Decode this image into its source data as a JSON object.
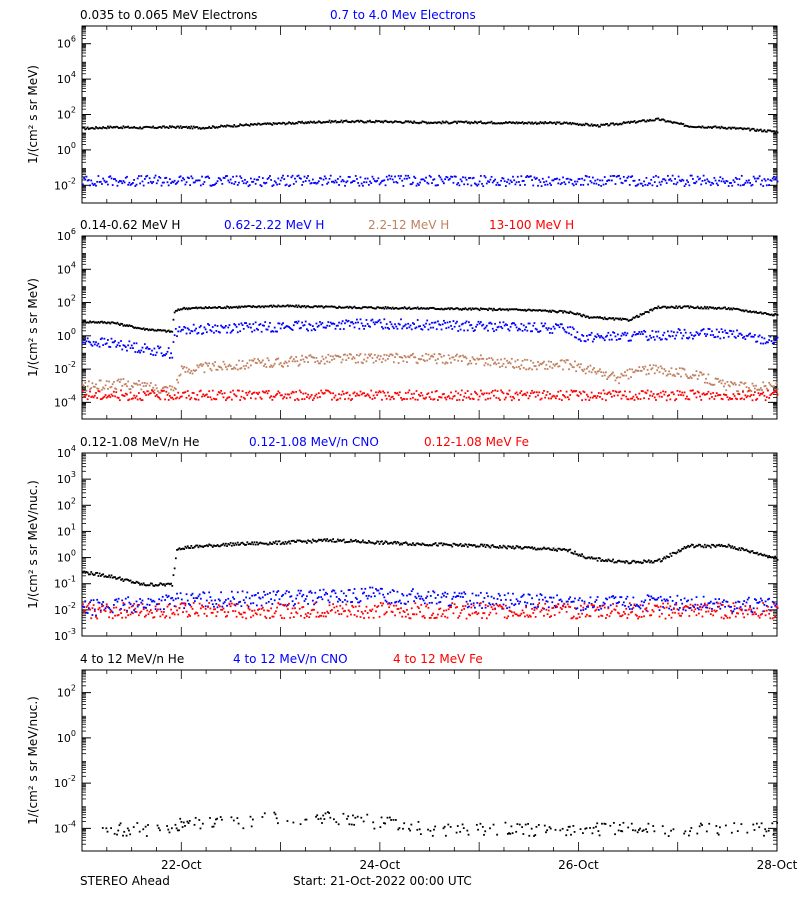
{
  "chart_data": [
    {
      "type": "scatter",
      "ylabel": "1/(cm² s sr MeV)",
      "yscale": "log",
      "ylim_exp": [
        -3,
        7
      ],
      "ytick_exps": [
        -2,
        0,
        2,
        4,
        6
      ],
      "xlim": [
        "2022-10-21T00:00",
        "2022-10-28T00:00"
      ],
      "legend": [
        {
          "label": "0.035 to 0.065 MeV Electrons",
          "color": "#000000"
        },
        {
          "label": "0.7 to 4.0 Mev Electrons",
          "color": "#0000ff"
        }
      ],
      "series": [
        {
          "color": "#000000",
          "x_days": [
            0,
            0.3,
            0.6,
            0.9,
            1.2,
            1.6,
            2.0,
            2.5,
            3.0,
            3.5,
            4.0,
            4.5,
            4.9,
            5.2,
            5.6,
            5.8,
            6.1,
            6.5,
            7.0
          ],
          "y": [
            18,
            22,
            20,
            22,
            20,
            28,
            35,
            45,
            45,
            40,
            40,
            38,
            36,
            26,
            45,
            60,
            25,
            20,
            12
          ]
        },
        {
          "color": "#0000ff",
          "x_days": [
            0,
            1,
            2,
            3,
            4,
            5,
            6,
            7
          ],
          "y": [
            0.02,
            0.02,
            0.02,
            0.02,
            0.02,
            0.02,
            0.02,
            0.02
          ]
        }
      ]
    },
    {
      "type": "scatter",
      "ylabel": "1/(cm² s sr MeV)",
      "yscale": "log",
      "ylim_exp": [
        -5,
        6
      ],
      "ytick_exps": [
        -4,
        -2,
        0,
        2,
        4,
        6
      ],
      "xlim": [
        "2022-10-21T00:00",
        "2022-10-28T00:00"
      ],
      "legend": [
        {
          "label": "0.14-0.62 MeV H",
          "color": "#000000"
        },
        {
          "label": "0.62-2.22 MeV H",
          "color": "#0000ff"
        },
        {
          "label": "2.2-12 MeV H",
          "color": "#c08060"
        },
        {
          "label": "13-100 MeV H",
          "color": "#ff0000"
        }
      ],
      "series": [
        {
          "color": "#000000",
          "x_days": [
            0,
            0.3,
            0.6,
            0.9,
            0.92,
            1.0,
            1.5,
            2.0,
            2.5,
            3.0,
            3.5,
            4.0,
            4.5,
            4.9,
            5.1,
            5.5,
            5.8,
            6.1,
            6.5,
            7.0
          ],
          "y": [
            8,
            7,
            3,
            2,
            30,
            50,
            60,
            70,
            60,
            55,
            50,
            45,
            40,
            30,
            15,
            10,
            60,
            60,
            50,
            20
          ]
        },
        {
          "color": "#0000ff",
          "x_days": [
            0,
            0.3,
            0.6,
            0.9,
            0.92,
            1.0,
            1.5,
            2.0,
            2.5,
            3.0,
            3.5,
            4.0,
            4.5,
            4.9,
            5.0,
            5.5,
            6.0,
            6.5,
            7.0
          ],
          "y": [
            0.5,
            0.4,
            0.2,
            0.1,
            1.5,
            2.5,
            3.5,
            4,
            5,
            6,
            5,
            4,
            3.5,
            3,
            1,
            1,
            1.5,
            1.5,
            0.5
          ]
        },
        {
          "color": "#c08060",
          "x_days": [
            0,
            0.4,
            0.8,
            0.92,
            1.0,
            1.5,
            2.0,
            2.5,
            3.0,
            3.5,
            4.0,
            4.5,
            4.9,
            5.1,
            5.4,
            5.6,
            5.8,
            6.0,
            6.3,
            6.5,
            7.0
          ],
          "y": [
            0.001,
            0.0015,
            0.0008,
            0.0008,
            0.01,
            0.02,
            0.03,
            0.05,
            0.05,
            0.05,
            0.04,
            0.02,
            0.02,
            0.01,
            0.003,
            0.01,
            0.01,
            0.008,
            0.003,
            0.001,
            0.001
          ]
        },
        {
          "color": "#ff0000",
          "x_days": [
            0,
            1,
            2,
            3,
            4,
            5,
            6,
            7
          ],
          "y": [
            0.0003,
            0.0003,
            0.0003,
            0.0003,
            0.0003,
            0.0003,
            0.0003,
            0.0003
          ]
        }
      ]
    },
    {
      "type": "scatter",
      "ylabel": "1/(cm² s sr MeV/nuc.)",
      "yscale": "log",
      "ylim_exp": [
        -3,
        4
      ],
      "ytick_exps": [
        -3,
        -2,
        -1,
        0,
        1,
        2,
        3,
        4
      ],
      "xlim": [
        "2022-10-21T00:00",
        "2022-10-28T00:00"
      ],
      "legend": [
        {
          "label": "0.12-1.08 MeV/n He",
          "color": "#000000"
        },
        {
          "label": "0.12-1.08 MeV/n CNO",
          "color": "#0000ff"
        },
        {
          "label": "0.12-1.08 MeV Fe",
          "color": "#ff0000"
        }
      ],
      "series": [
        {
          "color": "#000000",
          "x_days": [
            0,
            0.3,
            0.6,
            0.9,
            0.95,
            1.5,
            2.0,
            2.5,
            3.0,
            3.5,
            4.0,
            4.5,
            4.9,
            5.1,
            5.5,
            5.8,
            6.1,
            6.5,
            7.0
          ],
          "y": [
            0.3,
            0.2,
            0.1,
            0.1,
            2.5,
            3.5,
            4,
            5,
            4,
            3.5,
            3,
            2.5,
            2,
            1,
            0.7,
            0.8,
            3,
            3,
            1
          ]
        },
        {
          "color": "#0000ff",
          "x_days": [
            0,
            1,
            2,
            3,
            4,
            5,
            6,
            7
          ],
          "y": [
            0.012,
            0.025,
            0.03,
            0.04,
            0.025,
            0.02,
            0.02,
            0.015
          ]
        },
        {
          "color": "#ff0000",
          "x_days": [
            0,
            1,
            2,
            3,
            4,
            5,
            6,
            7
          ],
          "y": [
            0.01,
            0.01,
            0.01,
            0.01,
            0.01,
            0.01,
            0.01,
            0.01
          ]
        }
      ]
    },
    {
      "type": "scatter",
      "ylabel": "1/(cm² s sr MeV/nuc.)",
      "yscale": "log",
      "ylim_exp": [
        -5,
        3
      ],
      "ytick_exps": [
        -4,
        -2,
        0,
        2
      ],
      "xlim": [
        "2022-10-21T00:00",
        "2022-10-28T00:00"
      ],
      "legend": [
        {
          "label": "4 to 12 MeV/n He",
          "color": "#000000"
        },
        {
          "label": "4 to 12 MeV/n CNO",
          "color": "#0000ff"
        },
        {
          "label": "4 to 12 MeV Fe",
          "color": "#ff0000"
        }
      ],
      "series": [
        {
          "color": "#000000",
          "x_days": [
            0.2,
            0.5,
            0.9,
            1.0,
            1.5,
            2.0,
            2.5,
            3.0,
            3.5,
            4.0,
            4.5,
            5.0,
            5.5,
            6.0,
            6.5,
            7.0
          ],
          "y": [
            0.0001,
            0.0001,
            0.0001,
            0.0002,
            0.0002,
            0.0003,
            0.0003,
            0.0002,
            0.0001,
            0.0001,
            0.0001,
            0.0001,
            0.0001,
            0.0001,
            0.0001,
            0.0001
          ]
        }
      ]
    }
  ],
  "x_ticks": [
    "22-Oct",
    "24-Oct",
    "26-Oct",
    "28-Oct"
  ],
  "footer": {
    "spacecraft": "STEREO Ahead",
    "start": "Start: 21-Oct-2022 00:00 UTC"
  }
}
